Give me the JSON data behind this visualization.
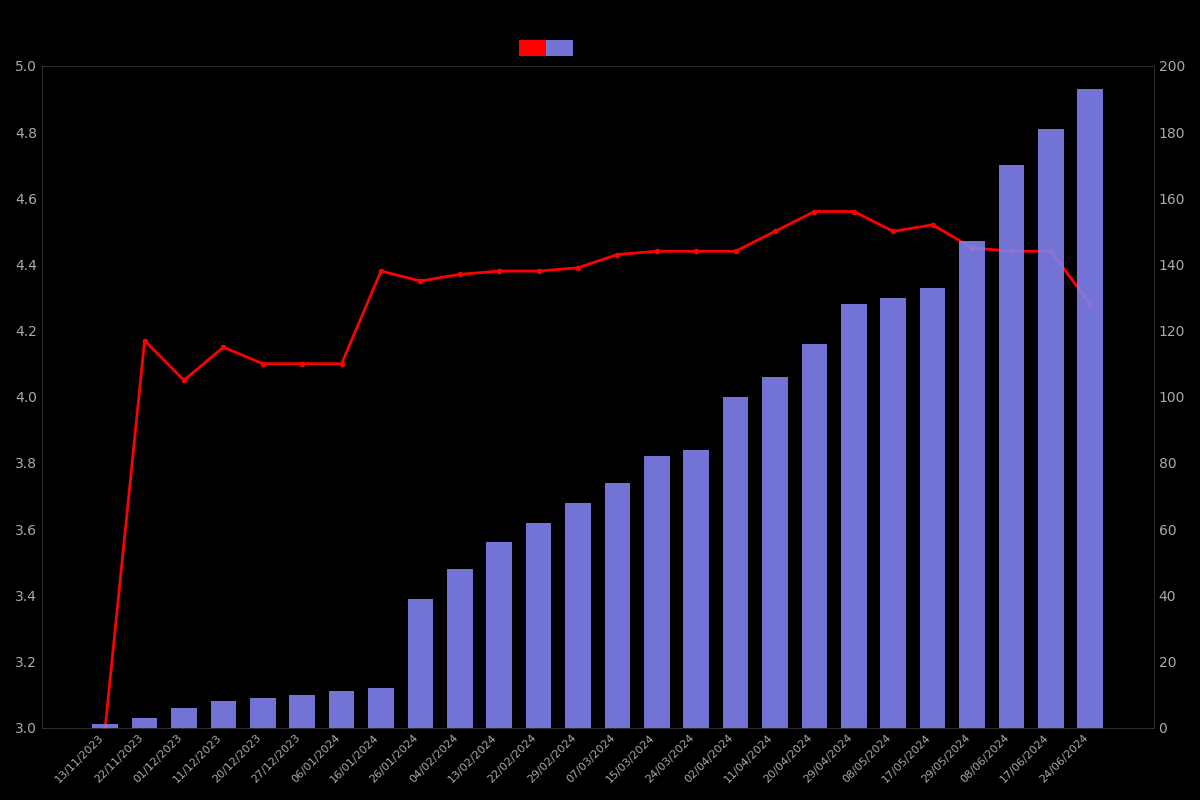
{
  "dates": [
    "13/11/2023",
    "22/11/2023",
    "01/12/2023",
    "11/12/2023",
    "20/12/2023",
    "27/12/2023",
    "06/01/2024",
    "16/01/2024",
    "26/01/2024",
    "04/02/2024",
    "13/02/2024",
    "22/02/2024",
    "29/02/2024",
    "07/03/2024",
    "15/03/2024",
    "24/03/2024",
    "02/04/2024",
    "11/04/2024",
    "20/04/2024",
    "29/04/2024",
    "08/05/2024",
    "17/05/2024",
    "29/05/2024",
    "08/06/2024",
    "17/06/2024",
    "24/06/2024"
  ],
  "bar_values": [
    1,
    3,
    6,
    8,
    9,
    10,
    11,
    12,
    39,
    48,
    56,
    62,
    68,
    74,
    82,
    84,
    100,
    106,
    116,
    128,
    130,
    133,
    147,
    170,
    181,
    193
  ],
  "line_values": [
    3.0,
    4.17,
    4.05,
    4.15,
    4.1,
    4.1,
    4.1,
    4.38,
    4.35,
    4.37,
    4.38,
    4.38,
    4.39,
    4.43,
    4.44,
    4.44,
    4.44,
    4.5,
    4.56,
    4.56,
    4.5,
    4.52,
    4.45,
    4.44,
    4.44,
    4.28
  ],
  "bar_color": "#8080ee",
  "line_color": "#ff0000",
  "background_color": "#000000",
  "text_color": "#aaaaaa",
  "ylim_left": [
    3.0,
    5.0
  ],
  "ylim_right": [
    0,
    200
  ],
  "yticks_left": [
    3.0,
    3.2,
    3.4,
    3.6,
    3.8,
    4.0,
    4.2,
    4.4,
    4.6,
    4.8,
    5.0
  ],
  "yticks_right": [
    0,
    20,
    40,
    60,
    80,
    100,
    120,
    140,
    160,
    180,
    200
  ],
  "line_marker_size": 3,
  "line_width": 2.0
}
